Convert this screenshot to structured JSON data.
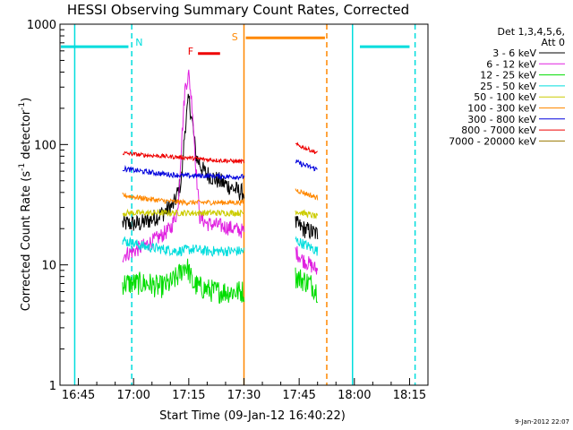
{
  "chart_data": {
    "type": "line",
    "title": "HESSI Observing Summary Count Rates, Corrected",
    "xlabel": "Start Time (09-Jan-12 16:40:22)",
    "ylabel_main": "Corrected Count Rate (s",
    "ylabel_sup1": "-1",
    "ylabel_mid": " detector",
    "ylabel_sup2": "-1",
    "ylabel_end": ")",
    "y_scale": "log",
    "ylim": [
      1,
      1000
    ],
    "xlim_minutes_after_1640": [
      0,
      100
    ],
    "x_ticks": [
      {
        "label": "16:45",
        "min": 5
      },
      {
        "label": "17:00",
        "min": 20
      },
      {
        "label": "17:15",
        "min": 35
      },
      {
        "label": "17:30",
        "min": 50
      },
      {
        "label": "17:45",
        "min": 65
      },
      {
        "label": "18:00",
        "min": 80
      },
      {
        "label": "18:15",
        "min": 95
      }
    ],
    "y_ticks": [
      {
        "label": "1",
        "value": 1
      },
      {
        "label": "10",
        "value": 10
      },
      {
        "label": "100",
        "value": 100
      },
      {
        "label": "1000",
        "value": 1000
      }
    ],
    "legend_header": [
      "Det 1,3,4,5,6,",
      "Att 0"
    ],
    "footer_date": "9-Jan-2012 22:07",
    "series": [
      {
        "name": "3 - 6 keV",
        "color": "#000000",
        "seg1": [
          [
            17,
            22
          ],
          [
            22,
            22
          ],
          [
            25,
            24
          ],
          [
            28,
            27
          ],
          [
            31,
            32
          ],
          [
            33,
            50
          ],
          [
            34,
            140
          ],
          [
            35,
            240
          ],
          [
            36,
            150
          ],
          [
            37,
            80
          ],
          [
            39,
            60
          ],
          [
            42,
            52
          ],
          [
            46,
            45
          ],
          [
            49,
            40
          ],
          [
            50,
            40
          ]
        ],
        "seg2": [
          [
            64,
            22
          ],
          [
            66,
            20
          ],
          [
            68,
            19
          ],
          [
            70,
            18
          ]
        ]
      },
      {
        "name": "6 - 12 keV",
        "color": "#e020e0",
        "seg1": [
          [
            17,
            12
          ],
          [
            20,
            13
          ],
          [
            24,
            15
          ],
          [
            27,
            17
          ],
          [
            30,
            20
          ],
          [
            32,
            28
          ],
          [
            33,
            100
          ],
          [
            34,
            300
          ],
          [
            35,
            380
          ],
          [
            36,
            200
          ],
          [
            37,
            60
          ],
          [
            38,
            25
          ],
          [
            40,
            22
          ],
          [
            44,
            21
          ],
          [
            47,
            20
          ],
          [
            50,
            19
          ]
        ],
        "seg2": [
          [
            64,
            13
          ],
          [
            66,
            11
          ],
          [
            68,
            10
          ],
          [
            70,
            9
          ]
        ]
      },
      {
        "name": "12 - 25 keV",
        "color": "#00dd00",
        "seg1": [
          [
            17,
            7
          ],
          [
            20,
            7
          ],
          [
            24,
            7
          ],
          [
            27,
            6.5
          ],
          [
            30,
            7
          ],
          [
            32,
            8
          ],
          [
            34,
            10
          ],
          [
            35,
            9
          ],
          [
            36,
            7
          ],
          [
            38,
            6.5
          ],
          [
            42,
            6
          ],
          [
            46,
            6
          ],
          [
            50,
            6
          ]
        ],
        "seg2": [
          [
            64,
            8
          ],
          [
            66,
            7.5
          ],
          [
            68,
            7
          ],
          [
            70,
            6
          ]
        ]
      },
      {
        "name": "25 - 50 keV",
        "color": "#00dddd",
        "seg1": [
          [
            17,
            16
          ],
          [
            20,
            15
          ],
          [
            24,
            14
          ],
          [
            28,
            13.5
          ],
          [
            32,
            13
          ],
          [
            36,
            13.5
          ],
          [
            40,
            13
          ],
          [
            44,
            13
          ],
          [
            48,
            13
          ],
          [
            50,
            13
          ]
        ],
        "seg2": [
          [
            64,
            16
          ],
          [
            66,
            15
          ],
          [
            68,
            14
          ],
          [
            70,
            13
          ]
        ]
      },
      {
        "name": "50 - 100 keV",
        "color": "#cccc00",
        "seg1": [
          [
            17,
            27
          ],
          [
            22,
            27
          ],
          [
            28,
            27
          ],
          [
            34,
            27
          ],
          [
            40,
            27
          ],
          [
            46,
            27
          ],
          [
            50,
            27
          ]
        ],
        "seg2": [
          [
            64,
            28
          ],
          [
            66,
            27
          ],
          [
            68,
            26
          ],
          [
            70,
            25
          ]
        ]
      },
      {
        "name": "100 - 300 keV",
        "color": "#ff8800",
        "seg1": [
          [
            17,
            38
          ],
          [
            22,
            36
          ],
          [
            28,
            34
          ],
          [
            34,
            33
          ],
          [
            40,
            33
          ],
          [
            46,
            33
          ],
          [
            50,
            33
          ]
        ],
        "seg2": [
          [
            64,
            42
          ],
          [
            66,
            40
          ],
          [
            68,
            38
          ],
          [
            70,
            36
          ]
        ]
      },
      {
        "name": "300 - 800 keV",
        "color": "#0000dd",
        "seg1": [
          [
            17,
            63
          ],
          [
            22,
            60
          ],
          [
            28,
            57
          ],
          [
            34,
            55
          ],
          [
            40,
            55
          ],
          [
            46,
            54
          ],
          [
            50,
            54
          ]
        ],
        "seg2": [
          [
            64,
            72
          ],
          [
            66,
            68
          ],
          [
            68,
            65
          ],
          [
            70,
            62
          ]
        ]
      },
      {
        "name": "800 - 7000 keV",
        "color": "#ee0000",
        "seg1": [
          [
            17,
            85
          ],
          [
            22,
            82
          ],
          [
            28,
            80
          ],
          [
            34,
            78
          ],
          [
            40,
            75
          ],
          [
            46,
            73
          ],
          [
            50,
            72
          ]
        ],
        "seg2": [
          [
            64,
            100
          ],
          [
            66,
            95
          ],
          [
            68,
            90
          ],
          [
            70,
            85
          ]
        ]
      },
      {
        "name": "7000 - 20000 keV",
        "color": "#997700",
        "seg1": [],
        "seg2": []
      }
    ],
    "annotations": [
      {
        "label": "N",
        "color": "#00dddd"
      },
      {
        "label": "S",
        "color": "#ff8800"
      },
      {
        "label": "F",
        "color": "#ee0000"
      }
    ],
    "markers": {
      "night_color": "#00dddd",
      "saa_color": "#ff8800",
      "flare_color": "#ee0000"
    }
  }
}
